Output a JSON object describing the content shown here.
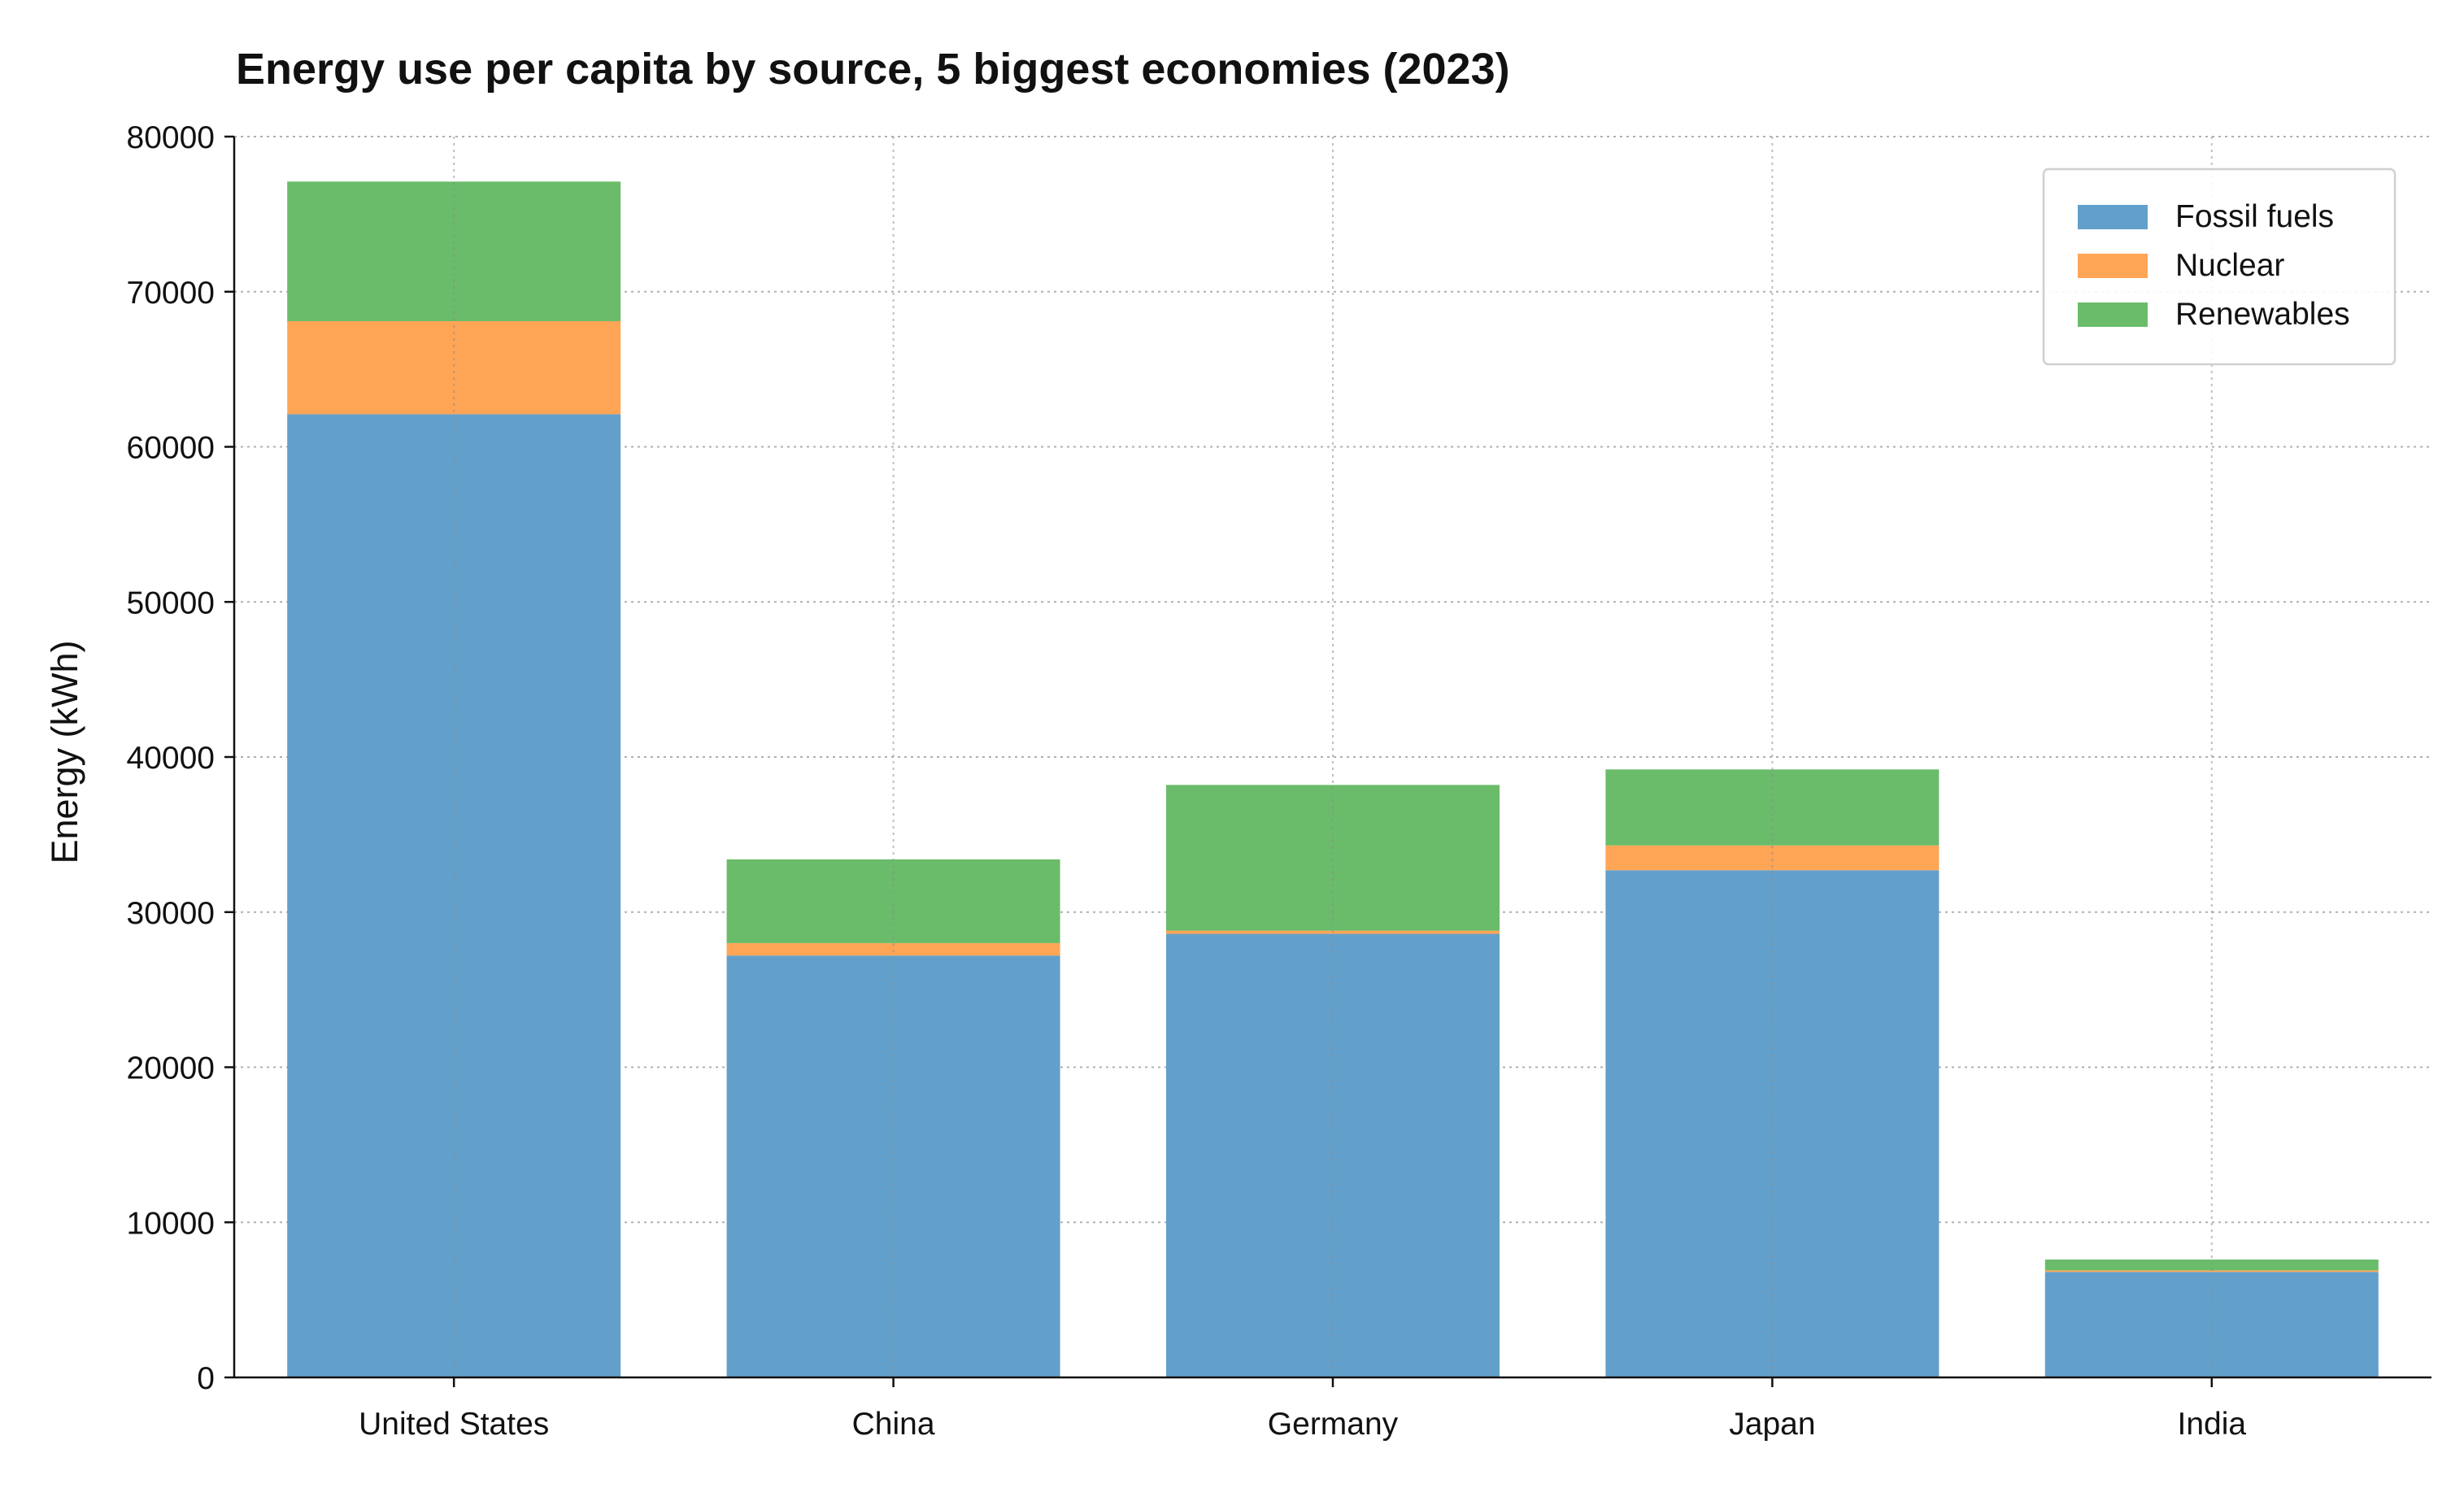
{
  "chart_data": {
    "type": "bar",
    "stacked": true,
    "title": "Energy use per capita by source, 5 biggest economies (2023)",
    "xlabel": "",
    "ylabel": "Energy (kWh)",
    "ylim": [
      0,
      80000
    ],
    "yticks": [
      0,
      10000,
      20000,
      30000,
      40000,
      50000,
      60000,
      70000,
      80000
    ],
    "categories": [
      "United States",
      "China",
      "Germany",
      "Japan",
      "India"
    ],
    "series": [
      {
        "name": "Fossil fuels",
        "color": "#62a0cb",
        "values": [
          62100,
          27200,
          28600,
          32700,
          6800
        ]
      },
      {
        "name": "Nuclear",
        "color": "#ffa556",
        "values": [
          6000,
          800,
          200,
          1600,
          100
        ]
      },
      {
        "name": "Renewables",
        "color": "#6abc6a",
        "values": [
          9000,
          5400,
          9400,
          4900,
          700
        ]
      }
    ],
    "grid": true,
    "legend_position": "top-right"
  }
}
